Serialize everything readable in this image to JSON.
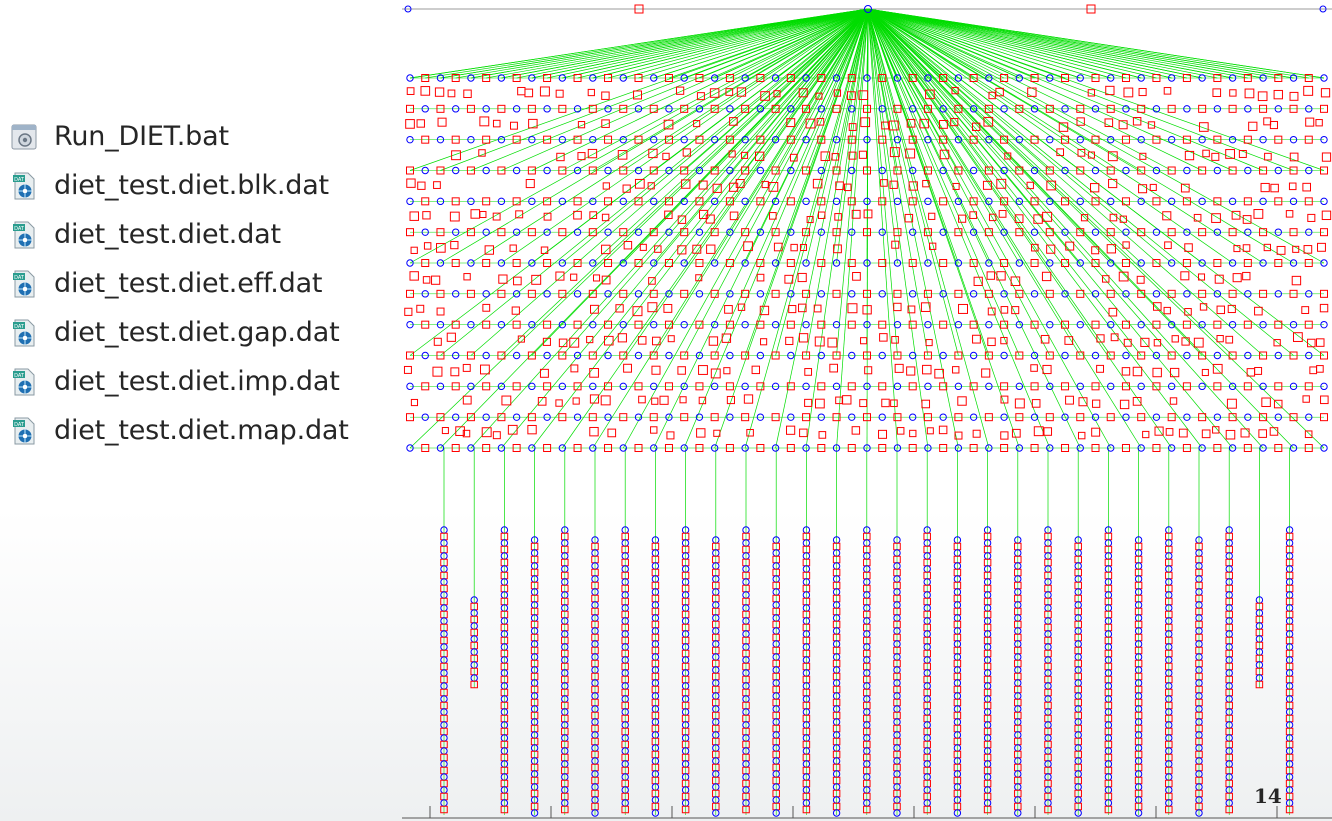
{
  "files": [
    {
      "name": "Run_DIET.bat",
      "icon": "batch-file-icon"
    },
    {
      "name": "diet_test.diet.blk.dat",
      "icon": "dat-file-icon"
    },
    {
      "name": "diet_test.diet.dat",
      "icon": "dat-file-icon"
    },
    {
      "name": "diet_test.diet.eff.dat",
      "icon": "dat-file-icon"
    },
    {
      "name": "diet_test.diet.gap.dat",
      "icon": "dat-file-icon"
    },
    {
      "name": "diet_test.diet.imp.dat",
      "icon": "dat-file-icon"
    },
    {
      "name": "diet_test.diet.map.dat",
      "icon": "dat-file-icon"
    }
  ],
  "page_number": "14",
  "colors": {
    "edge": "#00dd00",
    "circle_node": "#0000ff",
    "square_node": "#ff0000",
    "text": "#262626"
  }
}
